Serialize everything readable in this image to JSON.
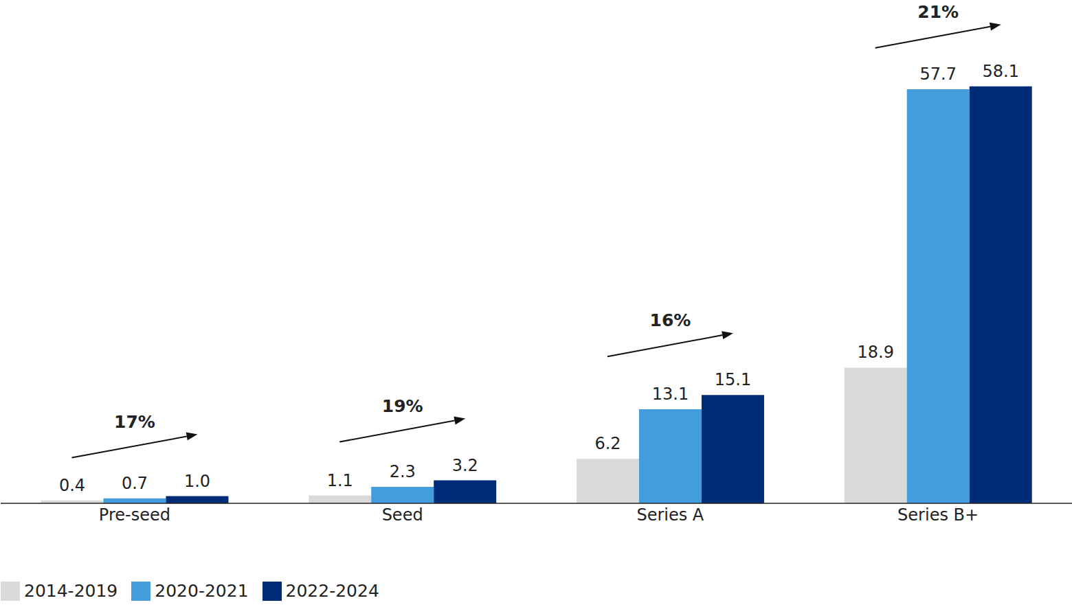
{
  "chart_data": {
    "type": "bar",
    "categories": [
      "Pre-seed",
      "Seed",
      "Series A",
      "Series B+"
    ],
    "series": [
      {
        "name": "2014-2019",
        "color": "#d9d9d9",
        "values": [
          0.4,
          1.1,
          6.2,
          18.9
        ],
        "value_labels": [
          "0.4",
          "1.1",
          "6.2",
          "18.9"
        ]
      },
      {
        "name": "2020-2021",
        "color": "#439cdb",
        "values": [
          0.7,
          2.3,
          13.1,
          57.7
        ],
        "value_labels": [
          "0.7",
          "2.3",
          "13.1",
          "57.7"
        ]
      },
      {
        "name": "2022-2024",
        "color": "#002c77",
        "values": [
          1.0,
          3.2,
          15.1,
          58.1
        ],
        "value_labels": [
          "1.0",
          "3.2",
          "15.1",
          "58.1"
        ]
      }
    ],
    "annotations": [
      "17%",
      "19%",
      "16%",
      "21%"
    ],
    "ylim": [
      0,
      62
    ],
    "tick_labels": "x",
    "data_labels": true,
    "grid": false,
    "legend": "bottom-left"
  }
}
